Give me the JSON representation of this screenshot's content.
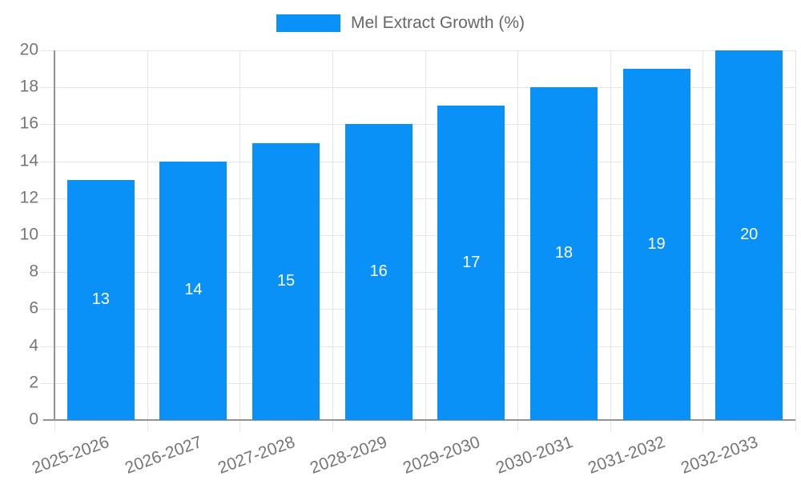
{
  "chart_data": {
    "type": "bar",
    "title": "",
    "legend_label": "Mel Extract Growth (%)",
    "legend_position": "top",
    "categories": [
      "2025-2026",
      "2026-2027",
      "2027-2028",
      "2028-2029",
      "2029-2030",
      "2030-2031",
      "2031-2032",
      "2032-2033"
    ],
    "values": [
      13,
      14,
      15,
      16,
      17,
      18,
      19,
      20
    ],
    "xlabel": "",
    "ylabel": "",
    "ylim": [
      0,
      20
    ],
    "yticks": [
      0,
      2,
      4,
      6,
      8,
      10,
      12,
      14,
      16,
      18,
      20
    ],
    "grid": true,
    "x_tick_rotation_deg": -20,
    "data_label_position": "inside-center",
    "colors": {
      "bar": "#0991f8",
      "grid": "#e5e5e5",
      "axis": "#929292",
      "tick_text": "#757575",
      "legend_text": "#666666",
      "bar_label_text": "#ffffff"
    }
  }
}
